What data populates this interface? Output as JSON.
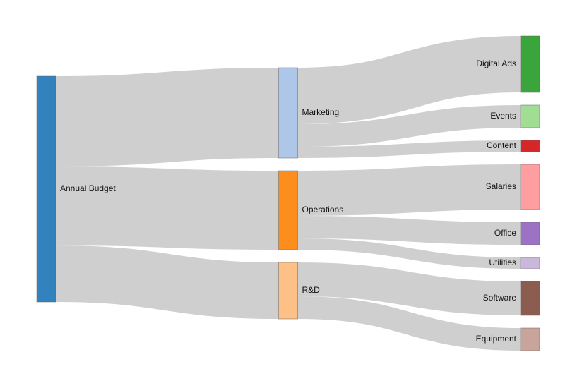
{
  "chart_data": {
    "type": "sankey",
    "nodes": [
      {
        "name": "Annual Budget",
        "color": "#3182bd"
      },
      {
        "name": "Marketing",
        "color": "#aec7e8"
      },
      {
        "name": "Operations",
        "color": "#fd8d1c"
      },
      {
        "name": "R&D",
        "color": "#fdc086"
      },
      {
        "name": "Digital Ads",
        "color": "#3aa53a"
      },
      {
        "name": "Events",
        "color": "#a1de93"
      },
      {
        "name": "Content",
        "color": "#d62728"
      },
      {
        "name": "Salaries",
        "color": "#ff9ea0"
      },
      {
        "name": "Office",
        "color": "#9b72c4"
      },
      {
        "name": "Utilities",
        "color": "#c9b8db"
      },
      {
        "name": "Software",
        "color": "#8c5c50"
      },
      {
        "name": "Equipment",
        "color": "#c9a49b"
      }
    ],
    "links": [
      {
        "source": 0,
        "target": 1,
        "value": 40
      },
      {
        "source": 0,
        "target": 2,
        "value": 35
      },
      {
        "source": 0,
        "target": 3,
        "value": 25
      },
      {
        "source": 1,
        "target": 4,
        "value": 25
      },
      {
        "source": 1,
        "target": 5,
        "value": 10
      },
      {
        "source": 1,
        "target": 6,
        "value": 5
      },
      {
        "source": 2,
        "target": 7,
        "value": 20
      },
      {
        "source": 2,
        "target": 8,
        "value": 10
      },
      {
        "source": 2,
        "target": 9,
        "value": 5
      },
      {
        "source": 3,
        "target": 10,
        "value": 15
      },
      {
        "source": 3,
        "target": 11,
        "value": 10
      }
    ],
    "link_color": "#cccccc"
  }
}
